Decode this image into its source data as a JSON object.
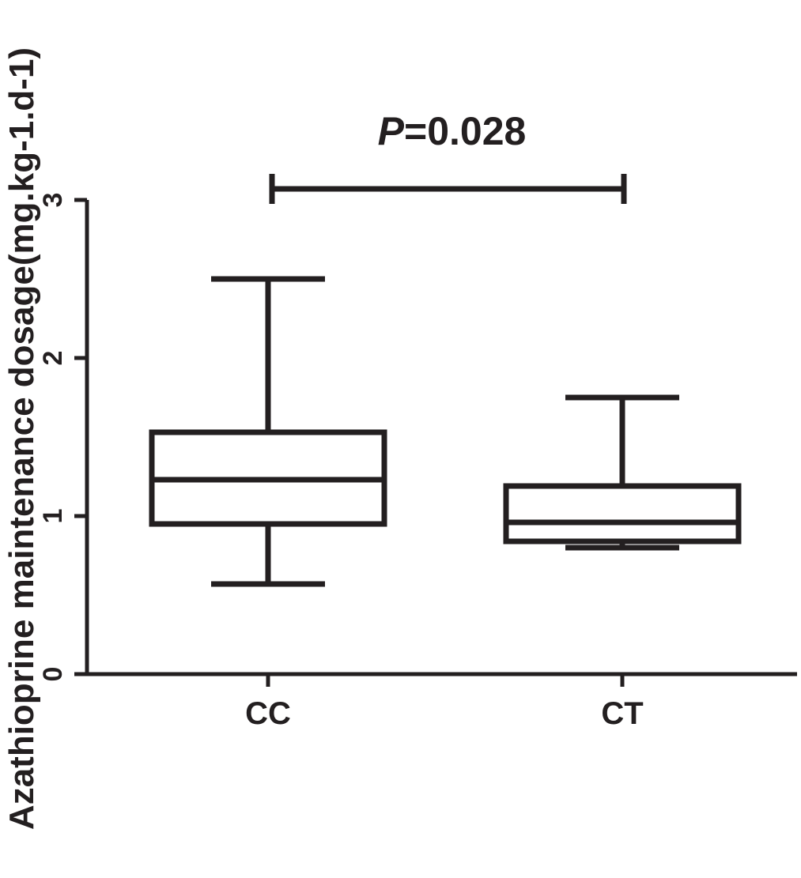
{
  "chart_data": {
    "type": "box",
    "ylabel": "Azathioprine maintenance dosage(mg.kg-1.d-1)",
    "ylim": [
      0,
      3
    ],
    "yticks": [
      "0",
      "1",
      "2",
      "3"
    ],
    "categories": [
      "CC",
      "CT"
    ],
    "boxes": [
      {
        "name": "CC",
        "min": 0.57,
        "q1": 0.95,
        "median": 1.23,
        "q3": 1.53,
        "max": 2.5
      },
      {
        "name": "CT",
        "min": 0.8,
        "q1": 0.84,
        "median": 0.96,
        "q3": 1.19,
        "max": 1.75
      }
    ],
    "annotation": {
      "p_label": "P",
      "p_value_text": "=0.028",
      "y": 3.07,
      "from": "CC",
      "to": "CT"
    },
    "colors": {
      "ink": "#231f20",
      "background": "#ffffff"
    }
  }
}
